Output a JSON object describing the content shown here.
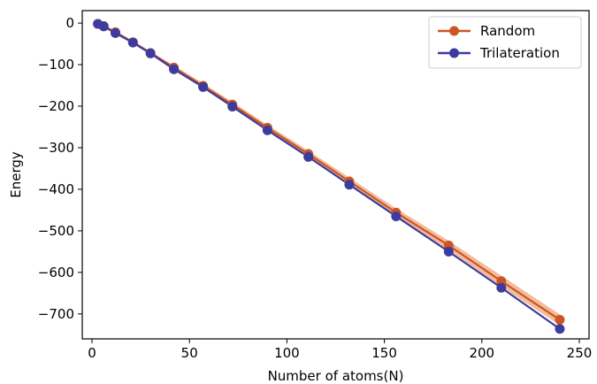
{
  "chart_data": {
    "type": "line",
    "title": "",
    "xlabel": "Number of atoms(N)",
    "ylabel": "Energy",
    "xlim": [
      -5,
      255
    ],
    "ylim": [
      -760,
      30
    ],
    "xticks": [
      0,
      50,
      100,
      150,
      200,
      250
    ],
    "yticks": [
      0,
      -100,
      -200,
      -300,
      -400,
      -500,
      -600,
      -700
    ],
    "xtick_labels": [
      "0",
      "50",
      "100",
      "150",
      "200",
      "250"
    ],
    "ytick_labels": [
      "0",
      "−100",
      "−200",
      "−300",
      "−400",
      "−500",
      "−600",
      "−700"
    ],
    "grid": false,
    "legend_position": "top-right",
    "x": [
      3,
      6,
      12,
      21,
      30,
      42,
      57,
      72,
      90,
      111,
      132,
      156,
      183,
      210,
      240
    ],
    "series": [
      {
        "name": "Random",
        "color": "#cc5522",
        "band_color": "#f0b08a",
        "values": [
          -2,
          -7,
          -22,
          -46,
          -72,
          -107,
          -151,
          -196,
          -252,
          -315,
          -381,
          -456,
          -535,
          -621,
          -714
        ],
        "band_lower": [
          -3,
          -9,
          -25,
          -50,
          -76,
          -112,
          -157,
          -202,
          -259,
          -323,
          -390,
          -466,
          -546,
          -634,
          -727
        ],
        "band_upper": [
          -1,
          -5,
          -19,
          -42,
          -68,
          -102,
          -145,
          -190,
          -245,
          -307,
          -372,
          -446,
          -524,
          -608,
          -701
        ]
      },
      {
        "name": "Trilateration",
        "color": "#3c3c9e",
        "values": [
          -2,
          -8,
          -24,
          -47,
          -73,
          -111,
          -154,
          -201,
          -258,
          -322,
          -389,
          -465,
          -550,
          -637,
          -736
        ]
      }
    ]
  }
}
